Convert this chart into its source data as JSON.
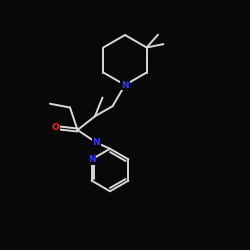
{
  "background_color": "#080808",
  "bond_color": "#d8d8d8",
  "N_color": "#3333ff",
  "O_color": "#ff2020",
  "bond_width": 1.4,
  "figsize": [
    2.5,
    2.5
  ],
  "dpi": 100,
  "xlim": [
    0,
    10
  ],
  "ylim": [
    0,
    10
  ]
}
